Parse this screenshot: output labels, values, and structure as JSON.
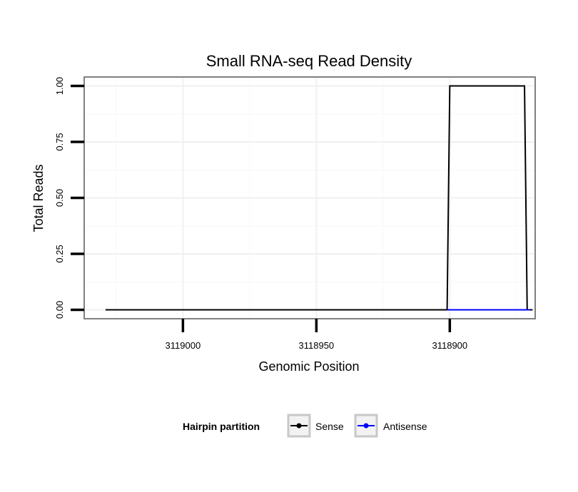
{
  "chart_data": {
    "type": "line",
    "title": "Small RNA-seq Read Density",
    "xlabel": "Genomic Position",
    "ylabel": "Total Reads",
    "xlim": [
      3119037,
      3118868
    ],
    "ylim": [
      -0.04,
      1.04
    ],
    "x_reversed": true,
    "x_ticks": [
      3119000,
      3118950,
      3118900
    ],
    "x_tick_labels": [
      "3119000",
      "3118950",
      "3118900"
    ],
    "y_ticks": [
      0,
      0.25,
      0.5,
      0.75,
      1.0
    ],
    "y_tick_labels": [
      "0.00",
      "0.25",
      "0.50",
      "0.75",
      "1.00"
    ],
    "grid": true,
    "legend": {
      "title": "Hairpin partition",
      "position": "bottom"
    },
    "series": [
      {
        "name": "Sense",
        "color": "#000000",
        "points": [
          [
            3119029,
            0
          ],
          [
            3118901,
            0
          ],
          [
            3118900,
            1
          ],
          [
            3118872,
            1
          ],
          [
            3118871,
            0
          ],
          [
            3118869,
            0
          ]
        ]
      },
      {
        "name": "Antisense",
        "color": "#0000ff",
        "points": [
          [
            3118901,
            0
          ],
          [
            3118870,
            0
          ]
        ]
      }
    ]
  }
}
